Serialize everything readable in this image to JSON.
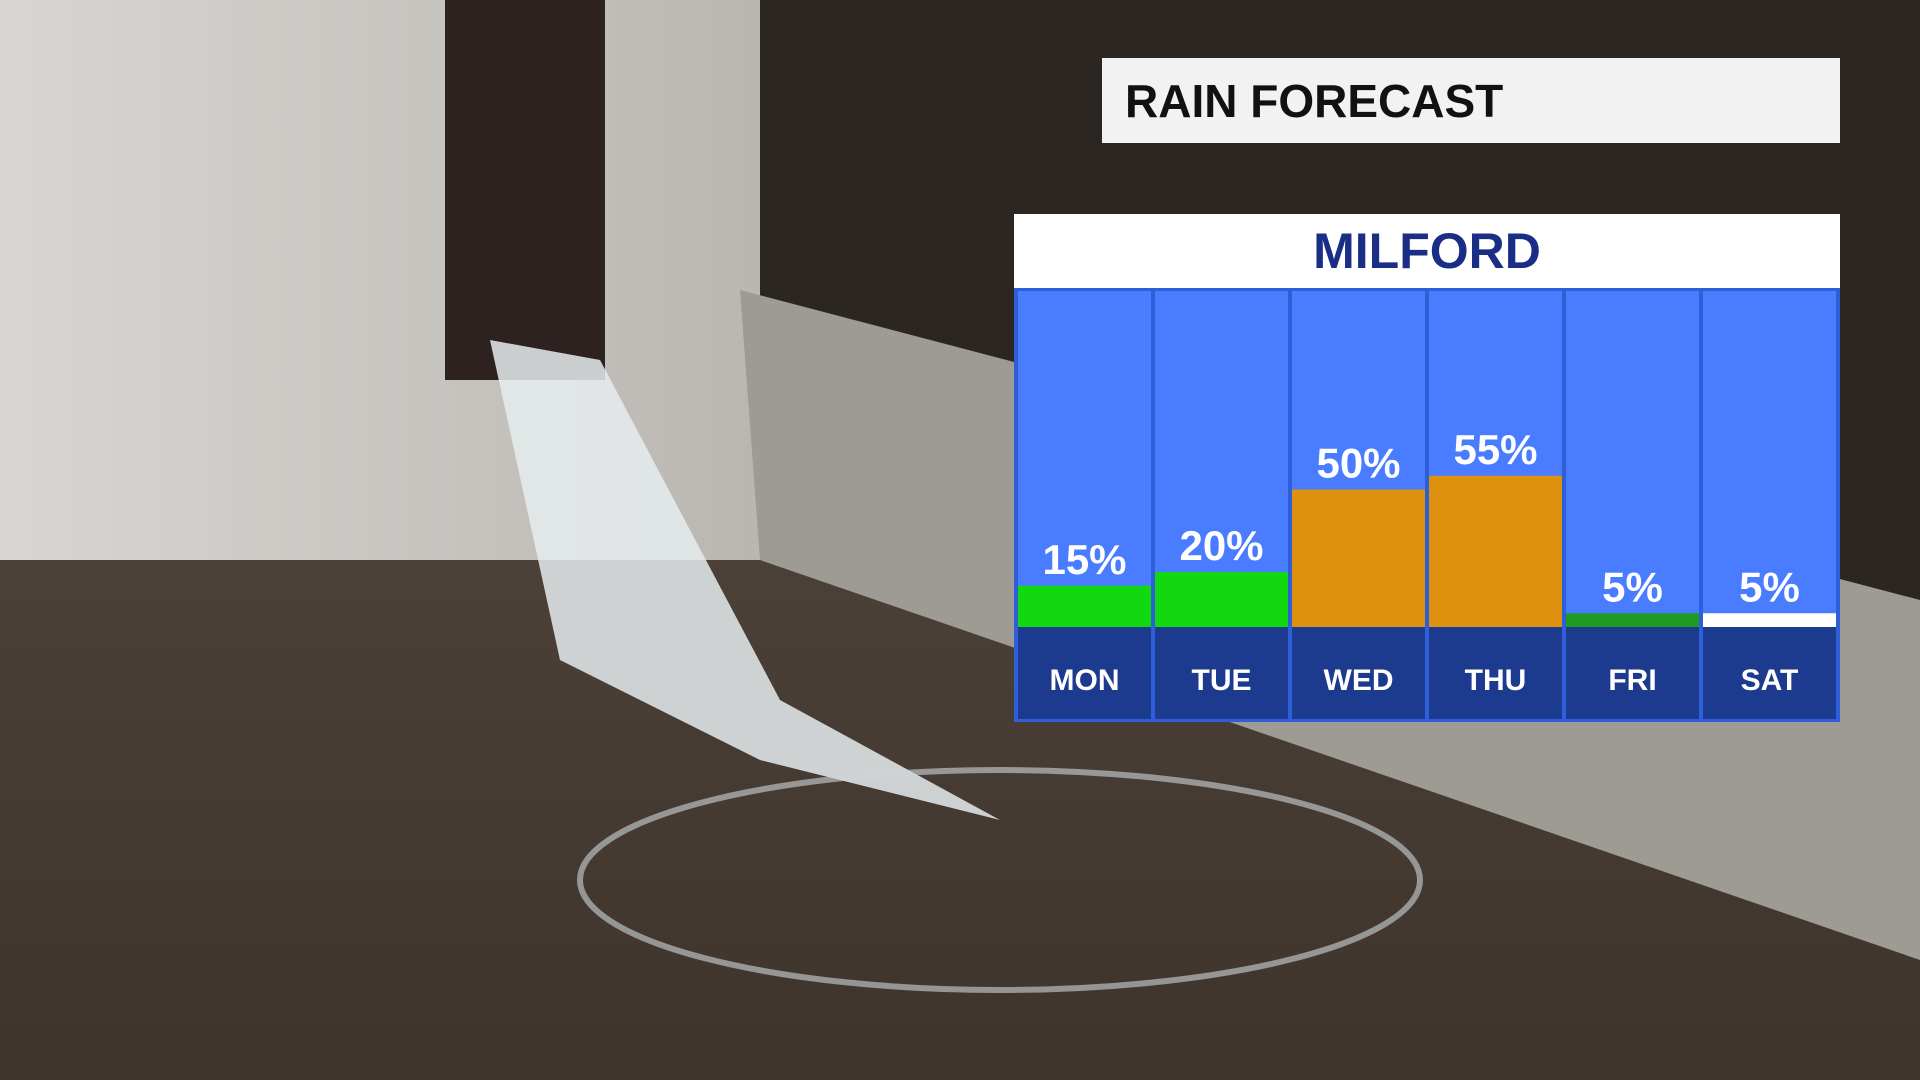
{
  "chart_data": {
    "type": "bar",
    "title": "RAIN FORECAST",
    "subtitle": "MILFORD",
    "categories": [
      "MON",
      "TUE",
      "WED",
      "THU",
      "FRI",
      "SAT"
    ],
    "values": [
      15,
      20,
      50,
      55,
      5,
      5
    ],
    "value_labels": [
      "15%",
      "20%",
      "50%",
      "55%",
      "5%",
      "5%"
    ],
    "colors": [
      "#12d812",
      "#12d812",
      "#de900f",
      "#de900f",
      "#1f9a22",
      "#ffffff"
    ]
  }
}
